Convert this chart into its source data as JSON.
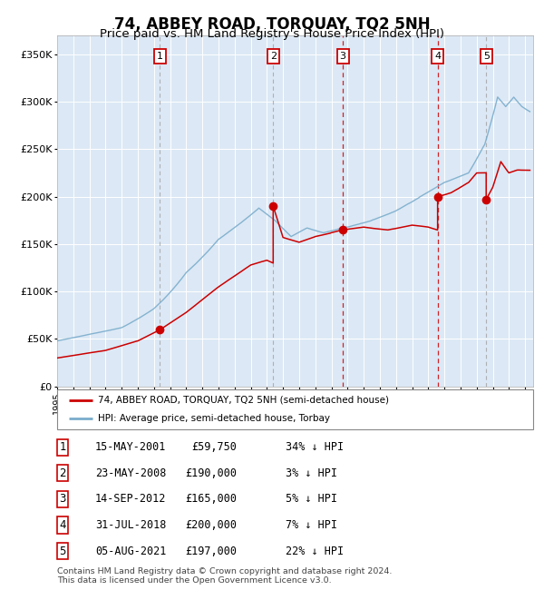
{
  "title": "74, ABBEY ROAD, TORQUAY, TQ2 5NH",
  "subtitle": "Price paid vs. HM Land Registry's House Price Index (HPI)",
  "title_fontsize": 12,
  "subtitle_fontsize": 9.5,
  "background_color": "#f5f5f5",
  "plot_bg_color": "#dce8f5",
  "ylim": [
    0,
    370000
  ],
  "xlim_start": 1995.0,
  "xlim_end": 2024.5,
  "ytick_labels": [
    "£0",
    "£50K",
    "£100K",
    "£150K",
    "£200K",
    "£250K",
    "£300K",
    "£350K"
  ],
  "ytick_values": [
    0,
    50000,
    100000,
    150000,
    200000,
    250000,
    300000,
    350000
  ],
  "transactions": [
    {
      "num": 1,
      "date": "15-MAY-2001",
      "price": 59750,
      "year": 2001.37,
      "pct": "34% ↓ HPI",
      "vline_style": "dashed_gray"
    },
    {
      "num": 2,
      "date": "23-MAY-2008",
      "price": 190000,
      "year": 2008.39,
      "pct": "3% ↓ HPI",
      "vline_style": "dashed_gray"
    },
    {
      "num": 3,
      "date": "14-SEP-2012",
      "price": 165000,
      "year": 2012.71,
      "pct": "5% ↓ HPI",
      "vline_style": "dashed_red"
    },
    {
      "num": 4,
      "date": "31-JUL-2018",
      "price": 200000,
      "year": 2018.58,
      "pct": "7% ↓ HPI",
      "vline_style": "dashed_red"
    },
    {
      "num": 5,
      "date": "05-AUG-2021",
      "price": 197000,
      "year": 2021.59,
      "pct": "22% ↓ HPI",
      "vline_style": "dashed_gray"
    }
  ],
  "legend_line1": "74, ABBEY ROAD, TORQUAY, TQ2 5NH (semi-detached house)",
  "legend_line2": "HPI: Average price, semi-detached house, Torbay",
  "footer": "Contains HM Land Registry data © Crown copyright and database right 2024.\nThis data is licensed under the Open Government Licence v3.0.",
  "red_line_color": "#cc0000",
  "blue_line_color": "#7aadcc",
  "marker_color": "#cc0000",
  "vline_gray_color": "#999999",
  "vline_red_color": "#cc0000",
  "table_rows": [
    {
      "num": "1",
      "date": "15-MAY-2001",
      "price": "£59,750",
      "pct": "34% ↓ HPI"
    },
    {
      "num": "2",
      "date": "23-MAY-2008",
      "price": "£190,000",
      "pct": "3% ↓ HPI"
    },
    {
      "num": "3",
      "date": "14-SEP-2012",
      "price": "£165,000",
      "pct": "5% ↓ HPI"
    },
    {
      "num": "4",
      "date": "31-JUL-2018",
      "price": "£200,000",
      "pct": "7% ↓ HPI"
    },
    {
      "num": "5",
      "date": "05-AUG-2021",
      "price": "£197,000",
      "pct": "22% ↓ HPI"
    }
  ]
}
